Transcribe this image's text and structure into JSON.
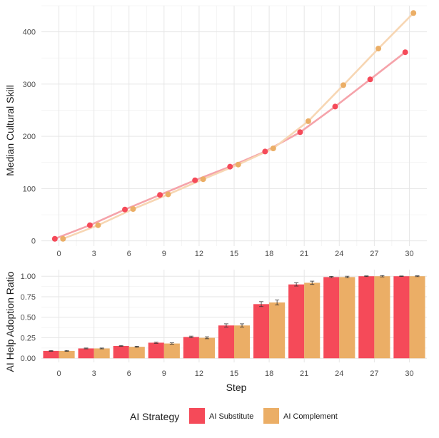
{
  "chart_data": [
    {
      "type": "line",
      "title": "",
      "xlabel": "",
      "ylabel": "Median Cultural Skill",
      "xlim": [
        -1.5,
        31.5
      ],
      "ylim": [
        -10,
        450
      ],
      "x_ticks": [
        "0",
        "3",
        "6",
        "9",
        "12",
        "15",
        "18",
        "21",
        "24",
        "27",
        "30"
      ],
      "y_ticks": [
        "0",
        "100",
        "200",
        "300",
        "400"
      ],
      "grid": true,
      "series": [
        {
          "name": "AI Substitute",
          "color": "#f54a59",
          "line_color": "#f5a3aa",
          "x": [
            0,
            3,
            6,
            9,
            12,
            15,
            18,
            21,
            24,
            27,
            30
          ],
          "y": [
            4,
            30,
            60,
            88,
            116,
            142,
            171,
            208,
            257,
            309,
            361
          ]
        },
        {
          "name": "AI Complement",
          "color": "#ebae66",
          "line_color": "#f7d6b3",
          "x": [
            0,
            3,
            6,
            9,
            12,
            15,
            18,
            21,
            24,
            27,
            30
          ],
          "y": [
            4,
            30,
            61,
            89,
            118,
            146,
            177,
            229,
            298,
            368,
            436
          ]
        }
      ]
    },
    {
      "type": "bar",
      "title": "",
      "xlabel": "Step",
      "ylabel": "AI Help Adoption Ratio",
      "categories": [
        "0",
        "3",
        "6",
        "9",
        "12",
        "15",
        "18",
        "21",
        "24",
        "27",
        "30"
      ],
      "ylim": [
        -0.05,
        1.08
      ],
      "y_ticks": [
        "0.00",
        "0.25",
        "0.50",
        "0.75",
        "1.00"
      ],
      "grid": true,
      "series": [
        {
          "name": "AI Substitute",
          "color": "#f54a59",
          "values": [
            0.09,
            0.12,
            0.15,
            0.19,
            0.26,
            0.4,
            0.66,
            0.9,
            0.99,
            1.0,
            1.0
          ],
          "errors": [
            0.005,
            0.005,
            0.006,
            0.008,
            0.01,
            0.02,
            0.03,
            0.02,
            0.008,
            0.004,
            0.003
          ]
        },
        {
          "name": "AI Complement",
          "color": "#ebae66",
          "values": [
            0.09,
            0.12,
            0.14,
            0.18,
            0.25,
            0.4,
            0.68,
            0.92,
            0.99,
            1.0,
            1.0
          ],
          "errors": [
            0.005,
            0.005,
            0.006,
            0.008,
            0.012,
            0.02,
            0.03,
            0.02,
            0.01,
            0.008,
            0.005
          ]
        }
      ]
    }
  ],
  "legend": {
    "title": "AI Strategy",
    "placement": "bottom",
    "items": [
      {
        "label": "AI Substitute",
        "color": "#f54a59"
      },
      {
        "label": "AI Complement",
        "color": "#ebae66"
      }
    ]
  }
}
